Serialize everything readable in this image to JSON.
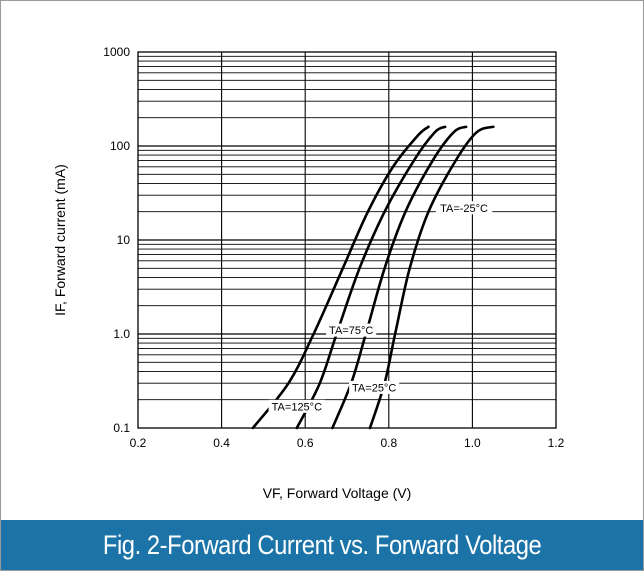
{
  "caption": "Fig. 2-Forward Current vs. Forward Voltage",
  "chart_data": {
    "type": "line",
    "title": "",
    "xlabel": "VF, Forward Voltage (V)",
    "ylabel": "IF, Forward current (mA)",
    "xlim": [
      0.2,
      1.2
    ],
    "ylim": [
      0.1,
      1000
    ],
    "yscale": "log",
    "grid": true,
    "x_ticks": [
      "0.2",
      "0.4",
      "0.6",
      "0.8",
      "1.0",
      "1.2"
    ],
    "y_ticks": [
      "0.1",
      "1.0",
      "10",
      "100",
      "1000"
    ],
    "series": [
      {
        "name": "TA=125°C",
        "points": [
          [
            0.475,
            0.1
          ],
          [
            0.56,
            0.3
          ],
          [
            0.62,
            1.0
          ],
          [
            0.69,
            5
          ],
          [
            0.75,
            20
          ],
          [
            0.81,
            60
          ],
          [
            0.87,
            130
          ],
          [
            0.895,
            160
          ]
        ]
      },
      {
        "name": "TA=75°C",
        "points": [
          [
            0.58,
            0.1
          ],
          [
            0.635,
            0.3
          ],
          [
            0.675,
            1.0
          ],
          [
            0.73,
            5
          ],
          [
            0.79,
            20
          ],
          [
            0.86,
            70
          ],
          [
            0.91,
            140
          ],
          [
            0.935,
            160
          ]
        ]
      },
      {
        "name": "TA=25°C",
        "points": [
          [
            0.665,
            0.1
          ],
          [
            0.71,
            0.3
          ],
          [
            0.745,
            1.0
          ],
          [
            0.79,
            5
          ],
          [
            0.84,
            20
          ],
          [
            0.905,
            70
          ],
          [
            0.955,
            140
          ],
          [
            0.985,
            160
          ]
        ]
      },
      {
        "name": "TA=-25°C",
        "points": [
          [
            0.755,
            0.1
          ],
          [
            0.79,
            0.3
          ],
          [
            0.815,
            1.0
          ],
          [
            0.85,
            5
          ],
          [
            0.895,
            20
          ],
          [
            0.96,
            70
          ],
          [
            1.01,
            140
          ],
          [
            1.05,
            160
          ]
        ]
      }
    ],
    "annotations": [
      {
        "text": "TA=-25°C",
        "x": 0.98,
        "y": 22
      },
      {
        "text": "TA=75°C",
        "x": 0.71,
        "y": 1.1
      },
      {
        "text": "TA=25°C",
        "x": 0.765,
        "y": 0.27
      },
      {
        "text": "TA=125°C",
        "x": 0.58,
        "y": 0.17
      }
    ]
  }
}
